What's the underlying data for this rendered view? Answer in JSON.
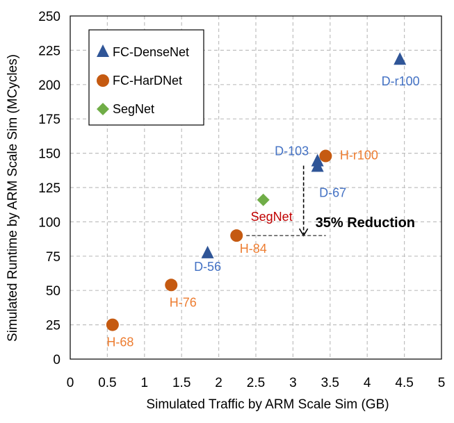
{
  "chart_data": {
    "type": "scatter",
    "xlabel": "Simulated Traffic by ARM Scale Sim (GB)",
    "ylabel": "Simulated Runtime by ARM Scale Sim (MCycles)",
    "xlim": [
      0,
      5
    ],
    "ylim": [
      0,
      250
    ],
    "xticks": [
      0,
      0.5,
      1,
      1.5,
      2,
      2.5,
      3,
      3.5,
      4,
      4.5,
      5
    ],
    "xtick_labels": [
      "0",
      "0.5",
      "1",
      "1.5",
      "2",
      "2.5",
      "3",
      "3.5",
      "4",
      "4.5",
      "5"
    ],
    "yticks": [
      0,
      25,
      50,
      75,
      100,
      125,
      150,
      175,
      200,
      225,
      250
    ],
    "ytick_labels": [
      "0",
      "25",
      "50",
      "75",
      "100",
      "125",
      "150",
      "175",
      "200",
      "225",
      "250"
    ],
    "grid": true,
    "legend_position": "top-left",
    "series": [
      {
        "name": "FC-DenseNet",
        "marker": "triangle",
        "color": "#2F5597",
        "label_color": "#4472C4",
        "points": [
          {
            "x": 1.85,
            "y": 77,
            "label": "D-56"
          },
          {
            "x": 3.33,
            "y": 140,
            "label": "D-67"
          },
          {
            "x": 3.33,
            "y": 144,
            "label": "D-103"
          },
          {
            "x": 4.44,
            "y": 218,
            "label": "D-r100"
          }
        ]
      },
      {
        "name": "FC-HarDNet",
        "marker": "circle",
        "color": "#C55A11",
        "label_color": "#ED7D31",
        "points": [
          {
            "x": 0.57,
            "y": 25,
            "label": "H-68"
          },
          {
            "x": 1.36,
            "y": 54,
            "label": "H-76"
          },
          {
            "x": 2.24,
            "y": 90,
            "label": "H-84"
          },
          {
            "x": 3.44,
            "y": 148,
            "label": "H-r100"
          }
        ]
      },
      {
        "name": "SegNet",
        "marker": "diamond",
        "color": "#70AD47",
        "label_color": "#C00000",
        "points": [
          {
            "x": 2.6,
            "y": 116,
            "label": "SegNet"
          }
        ]
      }
    ],
    "annotations": [
      {
        "text": "35% Reduction"
      }
    ]
  }
}
